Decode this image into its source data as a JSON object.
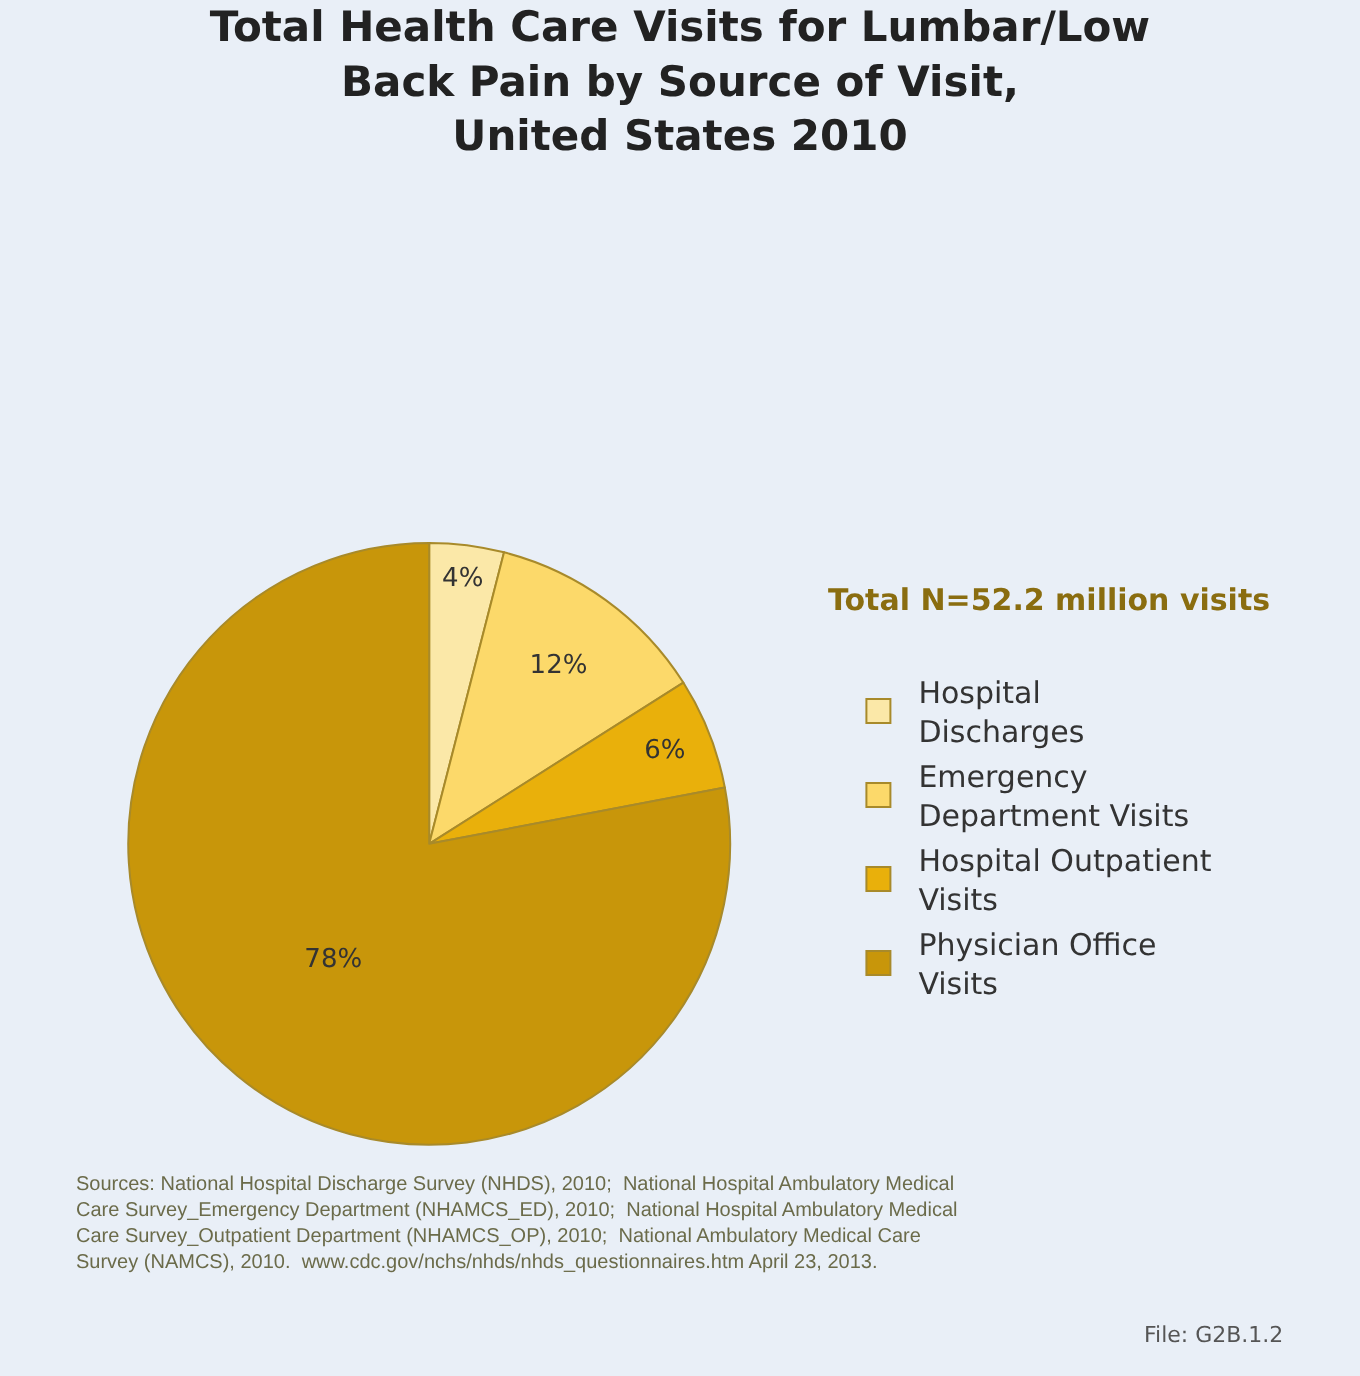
{
  "chart_data": {
    "type": "pie",
    "title": "Total Health Care Visits for Lumbar/Low\nBack Pain by Source of Visit,\nUnited States 2010",
    "categories": [
      "Hospital\nDischarges",
      "Emergency\nDepartment Visits",
      "Hospital Outpatient\nVisits",
      "Physician Office\nVisits"
    ],
    "values": [
      4,
      12,
      6,
      78
    ],
    "colors": [
      "#fbe8a8",
      "#fcd96a",
      "#e9b00b",
      "#c8960a"
    ],
    "value_labels": [
      "4%",
      "12%",
      "6%",
      "78%"
    ],
    "legend": "right",
    "annotations": [
      "Total N=52.2 million visits",
      "Sources: National Hospital Discharge Survey (NHDS), 2010;  National Hospital Ambulatory Medical\nCare Survey_Emergency Department (NHAMCS_ED), 2010;  National Hospital Ambulatory Medical\nCare Survey_Outpatient Department (NHAMCS_OP), 2010;  National Ambulatory Medical Care\nSurvey (NAMCS), 2010.  www.cdc.gov/nchs/nhds/nhds_questionnaires.htm April 23, 2013.",
      "File: G2B.1.2"
    ]
  }
}
